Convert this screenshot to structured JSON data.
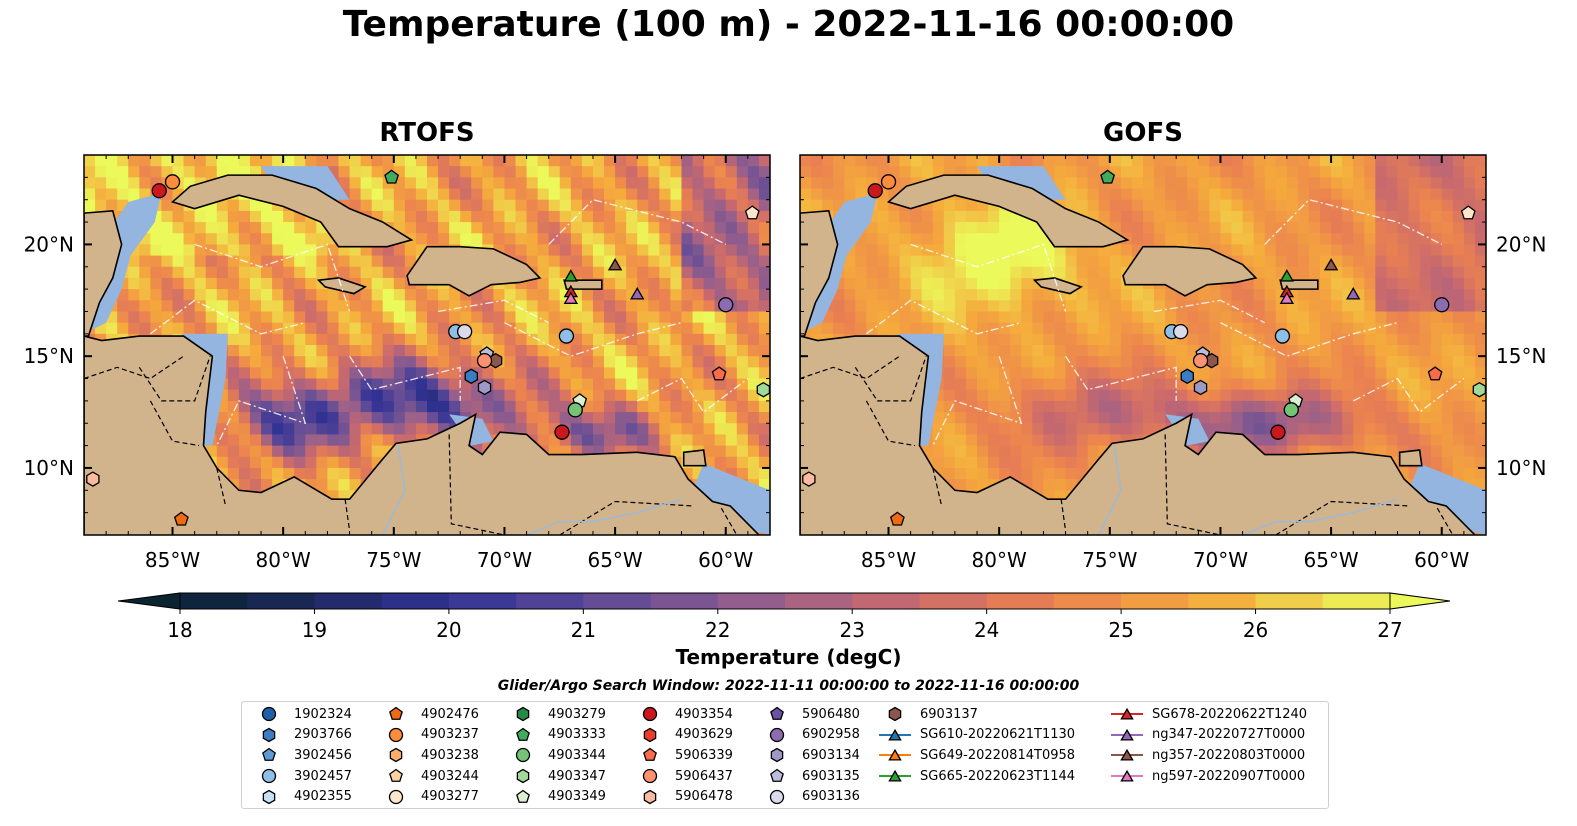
{
  "figure": {
    "suptitle": "Temperature (100 m) - 2022-11-16 00:00:00",
    "panels": [
      {
        "title": "RTOFS"
      },
      {
        "title": "GOFS"
      }
    ],
    "lat_ticks": [
      "20°N",
      "15°N",
      "10°N"
    ],
    "lon_ticks": [
      "85°W",
      "80°W",
      "75°W",
      "70°W",
      "65°W",
      "60°W"
    ],
    "colorbar": {
      "label": "Temperature (degC)",
      "ticks": [
        "18",
        "19",
        "20",
        "21",
        "22",
        "23",
        "24",
        "25",
        "26",
        "27"
      ],
      "vmin": 18,
      "vmax": 27
    },
    "search_window": "Glider/Argo Search Window: 2022-11-11 00:00:00 to 2022-11-16 00:00:00"
  },
  "colors": {
    "land": "#d2b48c",
    "shelf_water": "#94b5e0",
    "deep_ocean_dark": "#06202e"
  },
  "map_extent": {
    "lon": [
      -89,
      -58
    ],
    "lat": [
      7,
      24
    ]
  },
  "legend": {
    "columns": [
      [
        {
          "label": "1902324",
          "marker": "circle",
          "color": "#1f5fa8"
        },
        {
          "label": "2903766",
          "marker": "hexagon",
          "color": "#3b7dc4"
        },
        {
          "label": "3902456",
          "marker": "pentagon",
          "color": "#5c9bd6"
        },
        {
          "label": "3902457",
          "marker": "circle",
          "color": "#8fbfe6"
        },
        {
          "label": "4902355",
          "marker": "hexagon",
          "color": "#c7e0f4"
        }
      ],
      [
        {
          "label": "4902476",
          "marker": "pentagon",
          "color": "#f16913"
        },
        {
          "label": "4903237",
          "marker": "circle",
          "color": "#fd8d3c"
        },
        {
          "label": "4903238",
          "marker": "hexagon",
          "color": "#fdae6b"
        },
        {
          "label": "4903244",
          "marker": "pentagon",
          "color": "#fdd0a2"
        },
        {
          "label": "4903277",
          "marker": "circle",
          "color": "#fee6ce"
        }
      ],
      [
        {
          "label": "4903279",
          "marker": "hexagon",
          "color": "#238b45"
        },
        {
          "label": "4903333",
          "marker": "pentagon",
          "color": "#41ab5d"
        },
        {
          "label": "4903344",
          "marker": "circle",
          "color": "#74c476"
        },
        {
          "label": "4903347",
          "marker": "hexagon",
          "color": "#a1d99b"
        },
        {
          "label": "4903349",
          "marker": "pentagon",
          "color": "#d9f0d3"
        }
      ],
      [
        {
          "label": "4903354",
          "marker": "circle",
          "color": "#cb181d"
        },
        {
          "label": "4903629",
          "marker": "hexagon",
          "color": "#ef3b2c"
        },
        {
          "label": "5906339",
          "marker": "pentagon",
          "color": "#fb6a4a"
        },
        {
          "label": "5906437",
          "marker": "circle",
          "color": "#fc9272"
        },
        {
          "label": "5906478",
          "marker": "hexagon",
          "color": "#fcbba1"
        }
      ],
      [
        {
          "label": "5906480",
          "marker": "pentagon",
          "color": "#6a51a3"
        },
        {
          "label": "6902958",
          "marker": "circle",
          "color": "#8c6bb1"
        },
        {
          "label": "6903134",
          "marker": "hexagon",
          "color": "#9e9ac8"
        },
        {
          "label": "6903135",
          "marker": "pentagon",
          "color": "#bcbddc"
        },
        {
          "label": "6903136",
          "marker": "circle",
          "color": "#dadaeb"
        }
      ],
      [
        {
          "label": "6903137",
          "marker": "hexagon",
          "color": "#8c564b"
        },
        {
          "label": "SG610-20220621T1130",
          "marker": "triangle",
          "color": "#1f77b4"
        },
        {
          "label": "SG649-20220814T0958",
          "marker": "triangle",
          "color": "#ff7f0e"
        },
        {
          "label": "SG665-20220623T1144",
          "marker": "triangle",
          "color": "#2ca02c"
        }
      ],
      [
        {
          "label": "SG678-20220622T1240",
          "marker": "triangle",
          "color": "#d62728"
        },
        {
          "label": "ng347-20220727T0000",
          "marker": "triangle",
          "color": "#9467bd"
        },
        {
          "label": "ng357-20220803T0000",
          "marker": "triangle",
          "color": "#8c564b"
        },
        {
          "label": "ng597-20220907T0000",
          "marker": "triangle",
          "color": "#e377c2"
        }
      ]
    ]
  },
  "observations": [
    {
      "lon": -85.6,
      "lat": 22.4,
      "marker": "circle",
      "color": "#cb181d"
    },
    {
      "lon": -85.0,
      "lat": 22.8,
      "marker": "circle",
      "color": "#fd8d3c"
    },
    {
      "lon": -75.1,
      "lat": 23.0,
      "marker": "pentagon",
      "color": "#41ab5d"
    },
    {
      "lon": -58.8,
      "lat": 21.4,
      "marker": "pentagon",
      "color": "#fee6ce"
    },
    {
      "lon": -67.0,
      "lat": 18.6,
      "marker": "triangle",
      "color": "#2ca02c"
    },
    {
      "lon": -65.0,
      "lat": 19.1,
      "marker": "triangle",
      "color": "#8c564b"
    },
    {
      "lon": -67.0,
      "lat": 17.9,
      "marker": "triangle",
      "color": "#d62728"
    },
    {
      "lon": -67.0,
      "lat": 17.6,
      "marker": "triangle",
      "color": "#e377c2"
    },
    {
      "lon": -64.0,
      "lat": 17.8,
      "marker": "triangle",
      "color": "#9467bd"
    },
    {
      "lon": -60.0,
      "lat": 17.3,
      "marker": "circle",
      "color": "#8c6bb1"
    },
    {
      "lon": -72.2,
      "lat": 16.1,
      "marker": "circle",
      "color": "#8fbfe6"
    },
    {
      "lon": -71.8,
      "lat": 16.1,
      "marker": "circle",
      "color": "#dadaeb"
    },
    {
      "lon": -67.2,
      "lat": 15.9,
      "marker": "circle",
      "color": "#8fbfe6"
    },
    {
      "lon": -70.8,
      "lat": 15.1,
      "marker": "pentagon",
      "color": "#bcbddc"
    },
    {
      "lon": -70.4,
      "lat": 14.8,
      "marker": "hexagon",
      "color": "#8c564b"
    },
    {
      "lon": -70.9,
      "lat": 14.8,
      "marker": "circle",
      "color": "#fc9272"
    },
    {
      "lon": -71.5,
      "lat": 14.1,
      "marker": "hexagon",
      "color": "#3b7dc4"
    },
    {
      "lon": -70.9,
      "lat": 13.6,
      "marker": "hexagon",
      "color": "#9e9ac8"
    },
    {
      "lon": -60.3,
      "lat": 14.2,
      "marker": "pentagon",
      "color": "#fb6a4a"
    },
    {
      "lon": -58.3,
      "lat": 13.5,
      "marker": "hexagon",
      "color": "#a1d99b"
    },
    {
      "lon": -66.6,
      "lat": 13.0,
      "marker": "pentagon",
      "color": "#d9f0d3"
    },
    {
      "lon": -66.8,
      "lat": 12.6,
      "marker": "circle",
      "color": "#74c476"
    },
    {
      "lon": -67.4,
      "lat": 11.6,
      "marker": "circle",
      "color": "#cb181d"
    },
    {
      "lon": -88.6,
      "lat": 9.5,
      "marker": "hexagon",
      "color": "#fcbba1"
    },
    {
      "lon": -84.6,
      "lat": 7.7,
      "marker": "pentagon",
      "color": "#f16913"
    }
  ]
}
